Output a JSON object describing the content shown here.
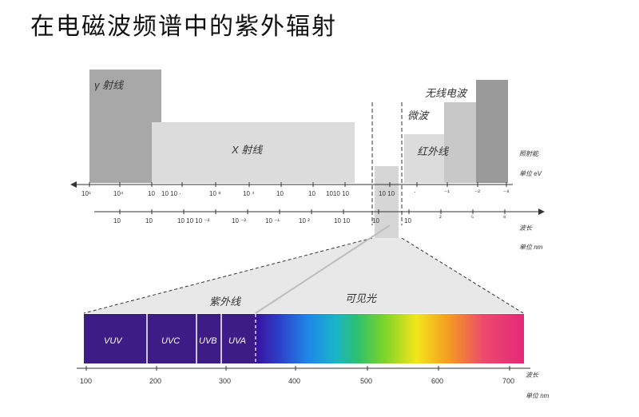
{
  "title": "在电磁波频谱中的紫外辐射",
  "upper": {
    "bands": [
      {
        "label": "γ 射线",
        "color": "#a8a8a8"
      },
      {
        "label": "X 射线",
        "color": "#dcdcdc"
      },
      {
        "label": "红外线",
        "color": "#dcdcdc"
      },
      {
        "label": "微波",
        "color": "#c8c8c8"
      },
      {
        "label": "无线电波",
        "color": "#9a9a9a"
      }
    ],
    "energy_axis": {
      "label": "照射能",
      "unit": "单位 eV",
      "ticks": [
        "10⁶",
        "10⁴",
        "10",
        "10 10 ·",
        "10 ⁸",
        "10 ⁴",
        "10",
        "10",
        "1010 10",
        "10 10",
        "·",
        "⁻¹",
        "⁻²",
        "⁻⁸"
      ]
    },
    "wavelength_axis": {
      "label": "波长",
      "unit": "单位 nm",
      "ticks": [
        "10",
        "10",
        "10 10 10 ⁻²",
        "10 ⁻²",
        "10 ⁻¹",
        "10 ²",
        "10 10",
        "10",
        "10",
        "²",
        "⁵",
        "⁸"
      ]
    }
  },
  "lower": {
    "uv_label": "紫外线",
    "visible_label": "可见光",
    "uv_bands": [
      "VUV",
      "UVC",
      "UVB",
      "UVA"
    ],
    "axis_label": "波长",
    "axis_unit": "单位 nm",
    "ticks": [
      "100",
      "200",
      "300",
      "400",
      "500",
      "600",
      "700"
    ]
  }
}
